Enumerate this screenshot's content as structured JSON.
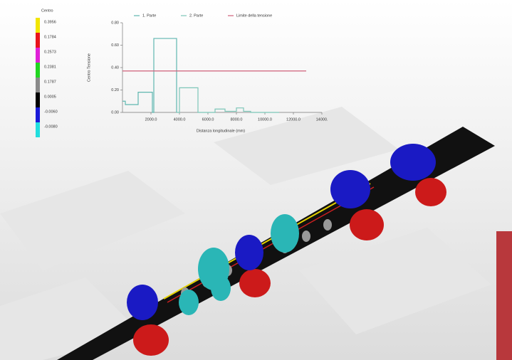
{
  "colorbar": {
    "title": "Centro",
    "items": [
      {
        "label": "0.3956",
        "color": "#f2e500"
      },
      {
        "label": "0.1784",
        "color": "#e8141c"
      },
      {
        "label": "0.2573",
        "color": "#e020d8"
      },
      {
        "label": "0.2381",
        "color": "#22d622"
      },
      {
        "label": "0.1787",
        "color": "#8a8a8a"
      },
      {
        "label": "0.0005",
        "color": "#000000"
      },
      {
        "label": "-0.0060",
        "color": "#1a1ad8"
      },
      {
        "label": "-0.0080",
        "color": "#22dede"
      }
    ]
  },
  "chart_data": {
    "type": "line",
    "y_label": "Centro Tensione",
    "x_label": "Distanza longitudinale (mm)",
    "xlim": [
      0,
      14000
    ],
    "xticks": [
      {
        "value": 2000,
        "label": "2000.0"
      },
      {
        "value": 4000,
        "label": "4000.0"
      },
      {
        "value": 6000,
        "label": "6000.0"
      },
      {
        "value": 8000,
        "label": "8000.0"
      },
      {
        "value": 10000,
        "label": "10000.0"
      },
      {
        "value": 12000,
        "label": "12000.0"
      },
      {
        "value": 14000,
        "label": "14000."
      }
    ],
    "ylim": [
      0,
      0.8
    ],
    "yticks": [
      {
        "value": 0,
        "label": "0.00"
      },
      {
        "value": 0.2,
        "label": "0.20"
      },
      {
        "value": 0.4,
        "label": "0.40"
      },
      {
        "value": 0.6,
        "label": "0.60"
      },
      {
        "value": 0.8,
        "label": "0.80"
      }
    ],
    "series": [
      {
        "name": "1. Parte",
        "color": "#5fb7b0",
        "x": [
          0,
          200,
          200,
          1100,
          1100,
          2100,
          2100,
          2200,
          2200,
          3800,
          3800
        ],
        "values": [
          0.1,
          0.1,
          0.07,
          0.07,
          0.18,
          0.18,
          0.0,
          0.0,
          0.66,
          0.66,
          0.0
        ]
      },
      {
        "name": "2. Parte",
        "color": "#7cc6b8",
        "x": [
          3800,
          4000,
          4000,
          5300,
          5300,
          6500,
          6500,
          7200,
          7200,
          8000,
          8000,
          8500,
          8500,
          9000,
          9000,
          11000
        ],
        "values": [
          0.0,
          0.0,
          0.22,
          0.22,
          0.0,
          0.0,
          0.03,
          0.03,
          0.01,
          0.01,
          0.04,
          0.04,
          0.01,
          0.01,
          0.0,
          0.0
        ]
      },
      {
        "name": "Limite della tensione",
        "color": "#d0607a",
        "x": [
          0,
          12900
        ],
        "values": [
          0.37,
          0.37
        ]
      }
    ]
  }
}
